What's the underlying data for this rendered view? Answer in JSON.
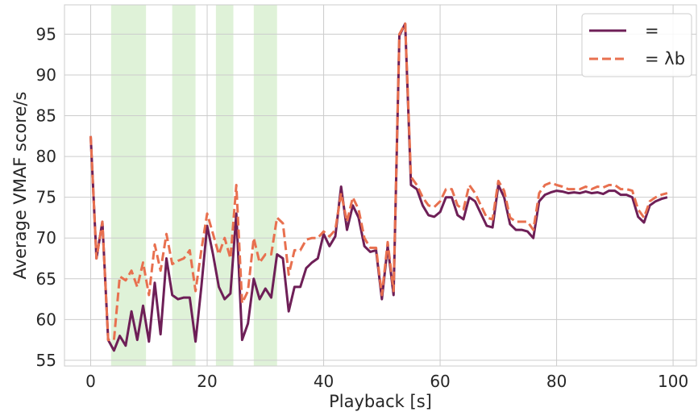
{
  "chart_data": {
    "type": "line",
    "title": "",
    "xlabel": "Playback [s]",
    "ylabel": "Average VMAF score/s",
    "xlim": [
      -4.5,
      104
    ],
    "ylim": [
      54.3,
      98.6
    ],
    "x_ticks": [
      0,
      20,
      40,
      60,
      80,
      100
    ],
    "y_ticks": [
      55,
      60,
      65,
      70,
      75,
      80,
      85,
      90,
      95
    ],
    "x_tick_labels": [
      "0",
      "20",
      "40",
      "60",
      "80",
      "100"
    ],
    "y_tick_labels": [
      "55",
      "60",
      "65",
      "70",
      "75",
      "80",
      "85",
      "90",
      "95"
    ],
    "grid": true,
    "legend_position": "top-right",
    "shaded_regions": [
      [
        3.5,
        9.5
      ],
      [
        14,
        18
      ],
      [
        21.5,
        24.5
      ],
      [
        28,
        32
      ]
    ],
    "shaded_color": "#dff2d8",
    "series": [
      {
        "name": "=",
        "color": "#6e1f57",
        "dash": "solid",
        "x": [
          0,
          1,
          2,
          3,
          4,
          5,
          6,
          7,
          8,
          9,
          10,
          11,
          12,
          13,
          14,
          15,
          16,
          17,
          18,
          19,
          20,
          21,
          22,
          23,
          24,
          25,
          26,
          27,
          28,
          29,
          30,
          31,
          32,
          33,
          34,
          35,
          36,
          37,
          38,
          39,
          40,
          41,
          42,
          43,
          44,
          45,
          46,
          47,
          48,
          49,
          50,
          51,
          52,
          53,
          54,
          55,
          56,
          57,
          58,
          59,
          60,
          61,
          62,
          63,
          64,
          65,
          66,
          67,
          68,
          69,
          70,
          71,
          72,
          73,
          74,
          75,
          76,
          77,
          78,
          79,
          80,
          81,
          82,
          83,
          84,
          85,
          86,
          87,
          88,
          89,
          90,
          91,
          92,
          93,
          94,
          95,
          96,
          97,
          98,
          99
        ],
        "values": [
          82.5,
          67.5,
          72,
          57.5,
          56.2,
          58,
          56.8,
          61,
          57.5,
          61.7,
          57.3,
          64.5,
          58.2,
          67.5,
          63,
          62.5,
          62.7,
          62.7,
          57.3,
          64,
          71.5,
          68,
          64,
          62.5,
          63.2,
          73,
          57.5,
          59.5,
          65,
          62.5,
          63.8,
          62.7,
          68,
          67.5,
          61,
          64,
          64,
          66.3,
          67,
          67.5,
          70.5,
          69,
          70.2,
          76.3,
          71,
          74,
          72.5,
          69,
          68.3,
          68.5,
          62.5,
          69,
          63,
          94.8,
          96.3,
          76.5,
          76,
          74,
          72.8,
          72.6,
          73.2,
          75,
          75,
          72.8,
          72.3,
          75,
          74.5,
          73,
          71.5,
          71.3,
          76.5,
          75,
          71.7,
          71,
          71,
          70.8,
          70,
          74.5,
          75.3,
          75.6,
          75.8,
          75.7,
          75.5,
          75.6,
          75.5,
          75.7,
          75.5,
          75.6,
          75.4,
          75.8,
          75.8,
          75.3,
          75.3,
          75,
          72.6,
          71.9,
          74,
          74.5,
          74.8,
          75
        ]
      },
      {
        "name": "= λb",
        "color": "#e8704f",
        "dash": "dashed",
        "x": [
          0,
          1,
          2,
          3,
          4,
          5,
          6,
          7,
          8,
          9,
          10,
          11,
          12,
          13,
          14,
          15,
          16,
          17,
          18,
          19,
          20,
          21,
          22,
          23,
          24,
          25,
          26,
          27,
          28,
          29,
          30,
          31,
          32,
          33,
          34,
          35,
          36,
          37,
          38,
          39,
          40,
          41,
          42,
          43,
          44,
          45,
          46,
          47,
          48,
          49,
          50,
          51,
          52,
          53,
          54,
          55,
          56,
          57,
          58,
          59,
          60,
          61,
          62,
          63,
          64,
          65,
          66,
          67,
          68,
          69,
          70,
          71,
          72,
          73,
          74,
          75,
          76,
          77,
          78,
          79,
          80,
          81,
          82,
          83,
          84,
          85,
          86,
          87,
          88,
          89,
          90,
          91,
          92,
          93,
          94,
          95,
          96,
          97,
          98,
          99
        ],
        "values": [
          82.5,
          67.5,
          72,
          57.5,
          57.5,
          65.3,
          64.8,
          66,
          64,
          67,
          63,
          69.2,
          66,
          70.5,
          66.8,
          67.2,
          67.5,
          68.5,
          63.5,
          68.5,
          73,
          70.5,
          68,
          70,
          67.5,
          76.5,
          62,
          63.5,
          70,
          67,
          68,
          68,
          72.5,
          71.8,
          65.5,
          68.5,
          68.5,
          69.8,
          70,
          70,
          70.8,
          70.2,
          71,
          75.5,
          72,
          75,
          73.5,
          70,
          68.8,
          68.8,
          63,
          69.5,
          63.5,
          95,
          96.3,
          77.5,
          76.5,
          75,
          74,
          73.8,
          74.5,
          76,
          76,
          74,
          73.5,
          76.5,
          75.5,
          74,
          72.5,
          72.3,
          77,
          75.8,
          72.5,
          72,
          72,
          72,
          71,
          75.5,
          76.5,
          76.8,
          76.5,
          76.3,
          76,
          76,
          76,
          76.3,
          76,
          76.3,
          76.2,
          76.5,
          76.5,
          76,
          76,
          75.8,
          73.5,
          72.5,
          74.5,
          75,
          75.3,
          75.5
        ]
      }
    ],
    "legend": [
      {
        "label": "=",
        "color": "#6e1f57",
        "dash": "solid"
      },
      {
        "label": "= λb",
        "color": "#e8704f",
        "dash": "dashed"
      }
    ]
  }
}
